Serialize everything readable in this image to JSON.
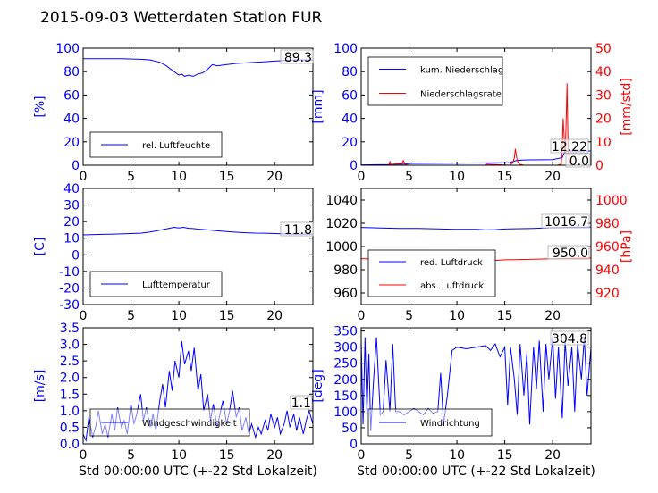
{
  "title": "2015-09-03 Wetterdaten Station FUR",
  "colors": {
    "blue": "#0000ff",
    "red": "#ff0000",
    "black": "#000000",
    "lightblue": "#8080ff"
  },
  "chart_data": [
    {
      "id": "humidity",
      "type": "line",
      "xlim": [
        0,
        24
      ],
      "xticks": [
        0,
        5,
        10,
        15,
        20
      ],
      "ylim": [
        0,
        100
      ],
      "yticks": [
        0,
        20,
        40,
        60,
        80,
        100
      ],
      "ylabel": "[%]",
      "annotation": "89.3",
      "series": [
        {
          "name": "rel. Luftfeuchte",
          "color": "#0000ff",
          "x": [
            0,
            2,
            4,
            6,
            7,
            8,
            8.7,
            9,
            9.5,
            10,
            10.3,
            10.6,
            11,
            11.5,
            12,
            12.5,
            13,
            13.5,
            14,
            15,
            16,
            17,
            18,
            19,
            20,
            21,
            22,
            23,
            24
          ],
          "y": [
            91,
            91,
            91,
            90.5,
            90,
            88,
            85,
            83,
            80,
            77,
            78,
            76,
            77,
            76,
            78,
            79,
            82,
            86,
            85,
            86,
            87,
            87.5,
            88,
            88.5,
            89,
            89.5,
            90,
            90,
            90
          ]
        }
      ]
    },
    {
      "id": "precip",
      "type": "line",
      "xlim": [
        0,
        24
      ],
      "xticks": [
        0,
        5,
        10,
        15,
        20
      ],
      "ylim": [
        0,
        100
      ],
      "yticks": [
        0,
        20,
        40,
        60,
        80,
        100
      ],
      "ylabel": "[mm]",
      "y2lim": [
        0,
        50
      ],
      "y2ticks": [
        0,
        10,
        20,
        30,
        40,
        50
      ],
      "y2label": "[mm/std]",
      "annotations": [
        "12.22",
        "0.0"
      ],
      "series": [
        {
          "name": "kum. Niederschlag",
          "color": "#0000ff",
          "axis": "left",
          "x": [
            0,
            2.8,
            3,
            4.5,
            5,
            10,
            13,
            15.5,
            16.2,
            17,
            20,
            21,
            21.3,
            24
          ],
          "y": [
            0.3,
            0.5,
            0.8,
            1,
            1.5,
            1.8,
            2,
            2.2,
            4,
            4.5,
            4.8,
            6.5,
            12.2,
            12.2
          ]
        }
      ],
      "series_right": [
        {
          "name": "Niederschlagsrate",
          "color": "#ff0000",
          "axis": "right",
          "x": [
            0,
            2.9,
            3,
            3.1,
            3.4,
            4.3,
            4.4,
            4.6,
            5,
            13,
            13.1,
            15.5,
            15.8,
            16,
            16.1,
            16.3,
            16.5,
            17,
            20.5,
            20.9,
            21,
            21.1,
            21.2,
            21.3,
            21.4,
            21.5,
            21.6,
            21.7,
            22,
            24
          ],
          "y": [
            0,
            0,
            1.5,
            0.2,
            0.5,
            0.8,
            2,
            0.3,
            0,
            0,
            0.5,
            0,
            1,
            3,
            7,
            2,
            0.5,
            0,
            0,
            0.5,
            8,
            20,
            12,
            5,
            18,
            35,
            10,
            2,
            0,
            0
          ]
        }
      ]
    },
    {
      "id": "temperature",
      "type": "line",
      "xlim": [
        0,
        24
      ],
      "xticks": [
        0,
        5,
        10,
        15,
        20
      ],
      "ylim": [
        -30,
        40
      ],
      "yticks": [
        -30,
        -20,
        -10,
        0,
        10,
        20,
        30,
        40
      ],
      "ylabel": "[C]",
      "annotation": "11.8",
      "series": [
        {
          "name": "Lufttemperatur",
          "color": "#0000ff",
          "x": [
            0,
            2,
            4,
            6,
            7,
            8,
            9,
            9.5,
            10,
            10.5,
            11,
            11.5,
            12,
            13,
            14,
            15,
            16,
            17,
            18,
            19,
            20,
            21,
            22,
            23,
            24
          ],
          "y": [
            12,
            12.3,
            12.6,
            13,
            13.8,
            14.8,
            16,
            16.6,
            16.2,
            16.6,
            16,
            15.8,
            15.5,
            15,
            14.5,
            14,
            13.6,
            13.3,
            13.1,
            13,
            12.8,
            12.6,
            12.5,
            12.5,
            12.4
          ]
        }
      ]
    },
    {
      "id": "pressure",
      "type": "line",
      "xlim": [
        0,
        24
      ],
      "xticks": [
        0,
        5,
        10,
        15,
        20
      ],
      "ylim": [
        950,
        1050
      ],
      "yticks": [
        960,
        980,
        1000,
        1020,
        1040
      ],
      "y2lim": [
        910,
        1010
      ],
      "y2ticks": [
        920,
        940,
        960,
        980,
        1000
      ],
      "y2label": "[hPa]",
      "annotations": [
        "1016.7",
        "950.0"
      ],
      "series": [
        {
          "name": "red. Luftdruck",
          "color": "#0000ff",
          "axis": "left",
          "x": [
            0,
            2,
            4,
            6,
            8,
            10,
            12,
            13,
            14,
            15,
            16,
            18,
            20,
            22,
            24
          ],
          "y": [
            1016.5,
            1016,
            1015.6,
            1015.5,
            1015.2,
            1014.8,
            1014.8,
            1014.3,
            1014.5,
            1015.1,
            1015.3,
            1015.6,
            1016.2,
            1016.6,
            1016.8
          ]
        }
      ],
      "series_right": [
        {
          "name": "abs. Luftdruck",
          "color": "#ff0000",
          "axis": "right",
          "x": [
            0,
            2,
            4,
            6,
            8,
            10,
            12,
            13,
            14,
            15,
            16,
            18,
            20,
            22,
            24
          ],
          "y": [
            949.5,
            949.1,
            948.8,
            948.7,
            948.5,
            948.2,
            948.2,
            947.8,
            948,
            948.5,
            948.7,
            949,
            949.4,
            949.8,
            950
          ]
        }
      ]
    },
    {
      "id": "windspeed",
      "type": "line",
      "xlim": [
        0,
        24
      ],
      "xticks": [
        0,
        5,
        10,
        15,
        20
      ],
      "ylim": [
        0,
        3.5
      ],
      "yticks": [
        0.0,
        0.5,
        1.0,
        1.5,
        2.0,
        2.5,
        3.0,
        3.5
      ],
      "ylabel": "[m/s]",
      "xlabel": "Std 00:00:00 UTC (+-22 Std Lokalzeit)",
      "annotation": "1.1",
      "series": [
        {
          "name": "Windgeschwindigkeit",
          "color": "#0000ff",
          "x": [
            0,
            0.3,
            0.6,
            1,
            1.3,
            1.6,
            2,
            2.3,
            2.6,
            3,
            3.3,
            3.6,
            4,
            4.3,
            4.6,
            5,
            5.3,
            5.6,
            6,
            6.3,
            6.6,
            7,
            7.3,
            7.6,
            8,
            8.3,
            8.6,
            9,
            9.3,
            9.6,
            10,
            10.3,
            10.6,
            11,
            11.3,
            11.6,
            12,
            12.3,
            12.6,
            13,
            13.3,
            13.6,
            14,
            14.3,
            14.6,
            15,
            15.3,
            15.6,
            16,
            16.3,
            16.6,
            17,
            17.3,
            17.6,
            18,
            18.3,
            18.6,
            19,
            19.3,
            19.6,
            20,
            20.3,
            20.6,
            21,
            21.3,
            21.6,
            22,
            22.3,
            22.6,
            23,
            23.3,
            23.6,
            24
          ],
          "y": [
            0.3,
            0.1,
            0.8,
            0.2,
            0.5,
            1.0,
            0.3,
            0.6,
            0.2,
            0.9,
            0.4,
            1.1,
            0.5,
            0.7,
            0.3,
            1.2,
            0.6,
            0.9,
            1.5,
            0.7,
            1.1,
            0.5,
            0.9,
            0.4,
            1.3,
            1.8,
            1.1,
            2.2,
            1.6,
            2.5,
            2.0,
            3.1,
            2.4,
            2.8,
            2.2,
            2.9,
            1.6,
            2.1,
            1.0,
            1.5,
            0.7,
            1.2,
            0.5,
            0.9,
            1.3,
            0.6,
            1.0,
            1.6,
            0.8,
            1.1,
            0.4,
            0.8,
            0.3,
            0.6,
            0.2,
            0.5,
            0.3,
            0.7,
            0.4,
            0.9,
            0.5,
            0.8,
            0.3,
            0.6,
            1.0,
            0.5,
            0.9,
            0.4,
            0.8,
            0.3,
            0.7,
            1.0,
            0.6
          ]
        }
      ]
    },
    {
      "id": "winddir",
      "type": "line",
      "xlim": [
        0,
        24
      ],
      "xticks": [
        0,
        5,
        10,
        15,
        20
      ],
      "ylim": [
        0,
        360
      ],
      "yticks": [
        0,
        50,
        100,
        150,
        200,
        250,
        300,
        350
      ],
      "ylabel": "[deg]",
      "xlabel": "Std 00:00:00 UTC (+-22 Std Lokalzeit)",
      "annotation": "304.8",
      "series": [
        {
          "name": "Windrichtung",
          "color": "#0000ff",
          "x": [
            0,
            0.2,
            0.4,
            0.6,
            0.8,
            1,
            1.3,
            1.6,
            2,
            2.3,
            2.6,
            3,
            3.3,
            3.6,
            4,
            4.5,
            5,
            5.5,
            6,
            6.5,
            7,
            7.5,
            8,
            8.3,
            8.6,
            9,
            9.5,
            10,
            11,
            12,
            13,
            13.5,
            14,
            14.5,
            15,
            15.3,
            15.6,
            16,
            16.3,
            16.6,
            17,
            17.3,
            17.6,
            18,
            18.3,
            18.6,
            19,
            19.3,
            19.6,
            20,
            20.3,
            20.6,
            21,
            21.3,
            21.6,
            22,
            22.3,
            22.6,
            23,
            23.3,
            23.6,
            24
          ],
          "y": [
            320,
            60,
            330,
            100,
            280,
            40,
            200,
            330,
            90,
            100,
            260,
            100,
            310,
            100,
            100,
            90,
            100,
            110,
            100,
            90,
            110,
            95,
            100,
            220,
            60,
            150,
            290,
            300,
            295,
            300,
            305,
            290,
            310,
            270,
            300,
            120,
            300,
            200,
            90,
            310,
            150,
            280,
            60,
            300,
            170,
            320,
            100,
            310,
            200,
            330,
            140,
            300,
            80,
            320,
            180,
            300,
            100,
            310,
            200,
            330,
            150,
            300
          ]
        }
      ]
    }
  ]
}
